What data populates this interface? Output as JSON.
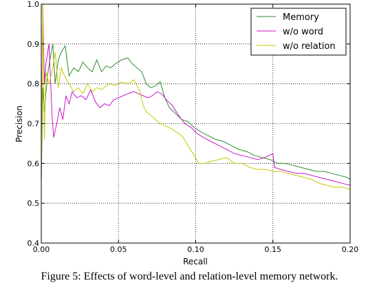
{
  "chart_data": {
    "type": "line",
    "xlabel": "Recall",
    "ylabel": "Precision",
    "xlim": [
      0.0,
      0.2
    ],
    "ylim": [
      0.4,
      1.0
    ],
    "xticks": [
      "0.00",
      "0.05",
      "0.10",
      "0.15",
      "0.20"
    ],
    "yticks": [
      "0.4",
      "0.5",
      "0.6",
      "0.7",
      "0.8",
      "0.9",
      "1.0"
    ],
    "grid": true,
    "legend_position": "top-right",
    "series": [
      {
        "name": "Memory",
        "color": "#2e8b2e",
        "x": [
          0.0,
          0.001,
          0.002,
          0.004,
          0.006,
          0.0075,
          0.009,
          0.011,
          0.013,
          0.0155,
          0.018,
          0.021,
          0.024,
          0.027,
          0.03,
          0.033,
          0.036,
          0.039,
          0.042,
          0.045,
          0.048,
          0.052,
          0.056,
          0.059,
          0.062,
          0.065,
          0.068,
          0.071,
          0.074,
          0.077,
          0.08,
          0.083,
          0.087,
          0.091,
          0.095,
          0.099,
          0.103,
          0.108,
          0.113,
          0.118,
          0.123,
          0.128,
          0.133,
          0.138,
          0.143,
          0.148,
          0.153,
          0.158,
          0.163,
          0.168,
          0.173,
          0.178,
          0.183,
          0.188,
          0.193,
          0.198,
          0.2
        ],
        "y": [
          0.55,
          0.79,
          0.73,
          0.82,
          0.87,
          0.9,
          0.8,
          0.86,
          0.88,
          0.895,
          0.82,
          0.84,
          0.83,
          0.855,
          0.84,
          0.83,
          0.86,
          0.83,
          0.845,
          0.84,
          0.85,
          0.86,
          0.865,
          0.85,
          0.84,
          0.83,
          0.8,
          0.79,
          0.795,
          0.805,
          0.765,
          0.74,
          0.725,
          0.71,
          0.705,
          0.69,
          0.68,
          0.67,
          0.66,
          0.655,
          0.645,
          0.635,
          0.63,
          0.62,
          0.615,
          0.61,
          0.6,
          0.6,
          0.595,
          0.59,
          0.585,
          0.58,
          0.58,
          0.575,
          0.57,
          0.565,
          0.56
        ]
      },
      {
        "name": "w/o word",
        "color": "#cc11cc",
        "x": [
          0.0,
          0.001,
          0.002,
          0.003,
          0.005,
          0.007,
          0.008,
          0.01,
          0.012,
          0.014,
          0.016,
          0.018,
          0.02,
          0.023,
          0.026,
          0.029,
          0.032,
          0.035,
          0.038,
          0.041,
          0.044,
          0.047,
          0.05,
          0.053,
          0.056,
          0.06,
          0.063,
          0.066,
          0.069,
          0.072,
          0.075,
          0.078,
          0.081,
          0.085,
          0.089,
          0.093,
          0.097,
          0.101,
          0.105,
          0.11,
          0.115,
          0.12,
          0.125,
          0.13,
          0.135,
          0.14,
          0.145,
          0.15,
          0.151,
          0.155,
          0.16,
          0.165,
          0.17,
          0.175,
          0.18,
          0.185,
          0.19,
          0.195,
          0.2
        ],
        "y": [
          0.55,
          1.0,
          0.8,
          0.85,
          0.9,
          0.72,
          0.665,
          0.7,
          0.74,
          0.71,
          0.77,
          0.75,
          0.78,
          0.765,
          0.77,
          0.76,
          0.785,
          0.755,
          0.74,
          0.75,
          0.745,
          0.76,
          0.765,
          0.77,
          0.775,
          0.78,
          0.775,
          0.77,
          0.765,
          0.77,
          0.78,
          0.775,
          0.76,
          0.745,
          0.72,
          0.7,
          0.69,
          0.675,
          0.665,
          0.655,
          0.645,
          0.635,
          0.625,
          0.62,
          0.615,
          0.61,
          0.615,
          0.625,
          0.59,
          0.585,
          0.58,
          0.575,
          0.575,
          0.57,
          0.565,
          0.56,
          0.555,
          0.55,
          0.545
        ]
      },
      {
        "name": "w/o relation",
        "color": "#c8c800",
        "x": [
          0.0,
          0.001,
          0.002,
          0.003,
          0.005,
          0.007,
          0.009,
          0.011,
          0.013,
          0.015,
          0.018,
          0.021,
          0.024,
          0.027,
          0.03,
          0.033,
          0.036,
          0.039,
          0.042,
          0.045,
          0.048,
          0.052,
          0.056,
          0.06,
          0.064,
          0.066,
          0.068,
          0.071,
          0.074,
          0.077,
          0.08,
          0.083,
          0.087,
          0.091,
          0.095,
          0.099,
          0.102,
          0.106,
          0.11,
          0.115,
          0.12,
          0.125,
          0.13,
          0.135,
          0.14,
          0.145,
          0.15,
          0.155,
          0.16,
          0.165,
          0.17,
          0.175,
          0.18,
          0.185,
          0.19,
          0.195,
          0.2
        ],
        "y": [
          0.55,
          1.0,
          0.66,
          0.83,
          0.8,
          0.83,
          0.88,
          0.79,
          0.84,
          0.82,
          0.8,
          0.78,
          0.79,
          0.775,
          0.8,
          0.78,
          0.79,
          0.785,
          0.795,
          0.8,
          0.795,
          0.805,
          0.8,
          0.81,
          0.78,
          0.745,
          0.73,
          0.72,
          0.71,
          0.7,
          0.695,
          0.69,
          0.68,
          0.67,
          0.645,
          0.62,
          0.6,
          0.6,
          0.605,
          0.61,
          0.615,
          0.6,
          0.6,
          0.59,
          0.585,
          0.585,
          0.58,
          0.58,
          0.575,
          0.57,
          0.565,
          0.56,
          0.55,
          0.545,
          0.54,
          0.54,
          0.535
        ]
      }
    ]
  },
  "caption": "Figure 5: Effects of word-level and relation-level memory network."
}
